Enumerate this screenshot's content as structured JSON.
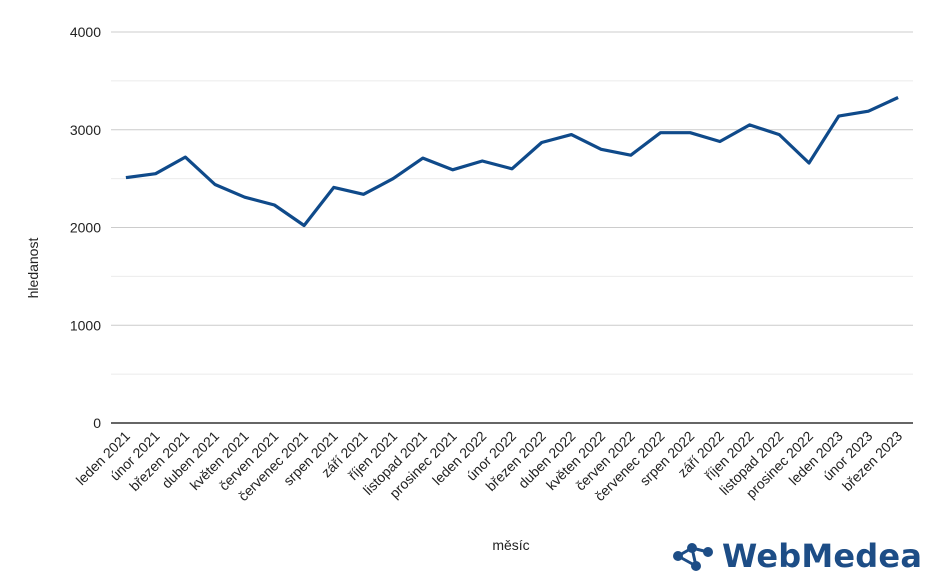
{
  "chart_data": {
    "type": "line",
    "xlabel": "měsíc",
    "ylabel": "hledanost",
    "ylim": [
      0,
      4000
    ],
    "yticks": [
      0,
      1000,
      2000,
      3000,
      4000
    ],
    "grid": true,
    "categories": [
      "leden 2021",
      "únor 2021",
      "březen 2021",
      "duben 2021",
      "květen 2021",
      "červen 2021",
      "červenec 2021",
      "srpen 2021",
      "září 2021",
      "říjen 2021",
      "listopad 2021",
      "prosinec 2021",
      "leden 2022",
      "únor 2022",
      "březen 2022",
      "duben 2022",
      "květen 2022",
      "červen 2022",
      "červenec 2022",
      "srpen 2022",
      "září 2022",
      "říjen 2022",
      "listopad 2022",
      "prosinec 2022",
      "leden 2023",
      "únor 2023",
      "březen 2023"
    ],
    "series": [
      {
        "values": [
          2510,
          2550,
          2720,
          2440,
          2310,
          2230,
          2020,
          2410,
          2340,
          2500,
          2710,
          2590,
          2680,
          2600,
          2870,
          2950,
          2800,
          2740,
          2970,
          2970,
          2880,
          3050,
          2950,
          2660,
          3140,
          3190,
          3330
        ],
        "color": "#0f4a8a"
      }
    ]
  },
  "logo": {
    "text": "WebMedea",
    "icon": "molecule-icon",
    "color": "#1d4d86"
  }
}
